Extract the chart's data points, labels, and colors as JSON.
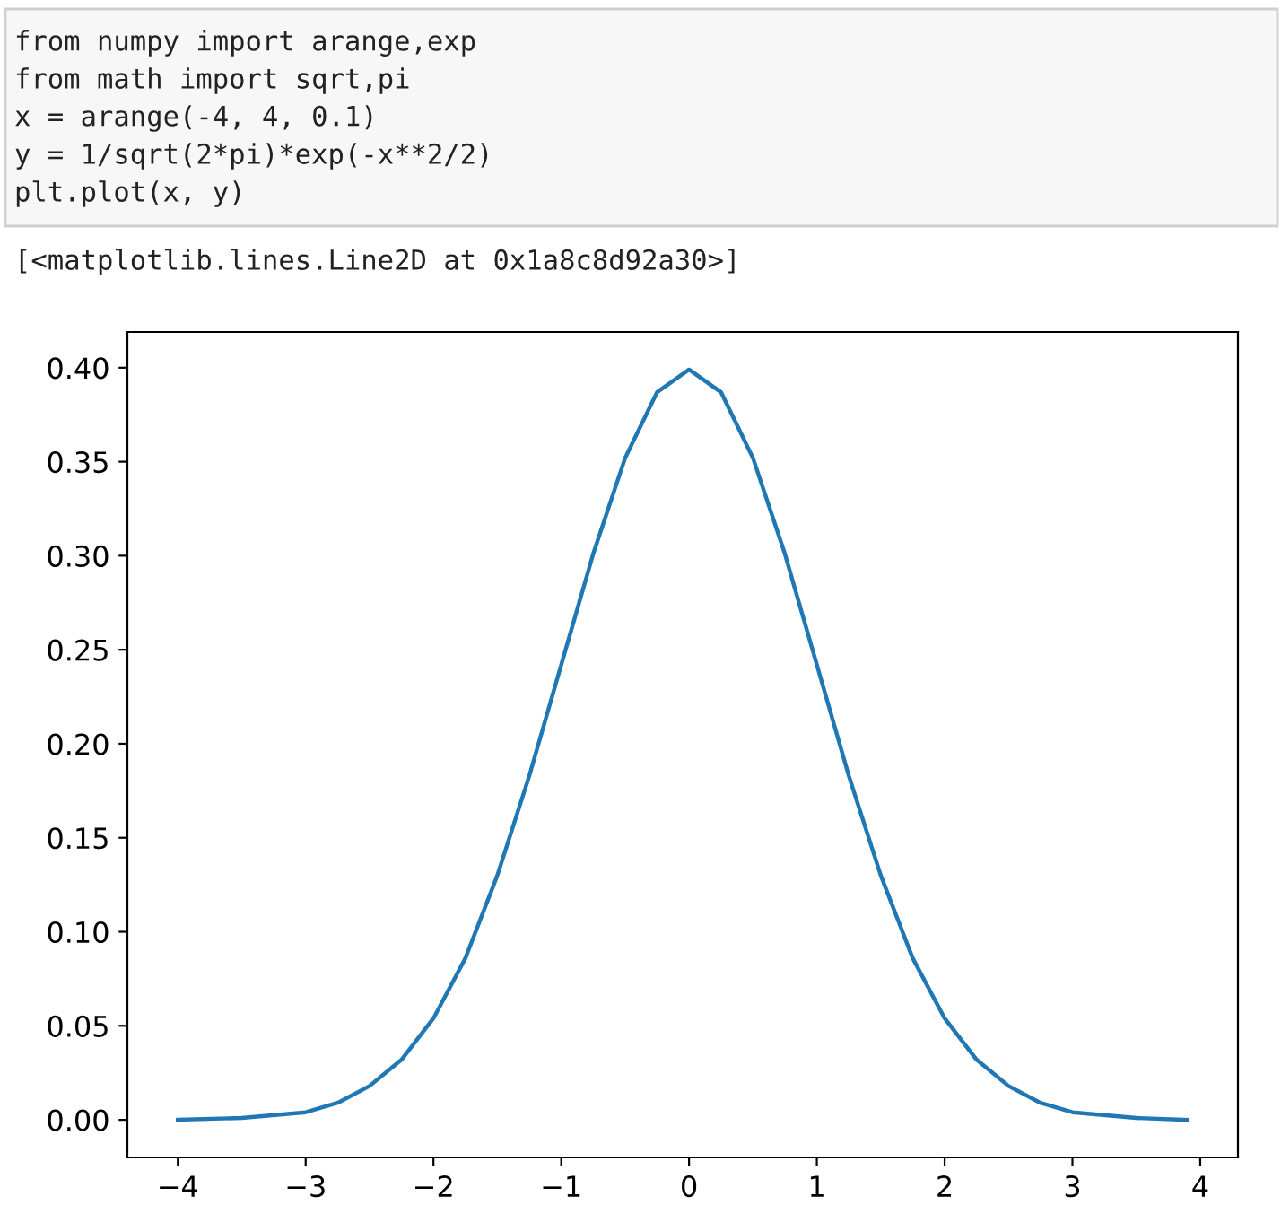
{
  "chart_data": {
    "type": "line",
    "annotations": [
      "from numpy import arange,exp",
      "from math import sqrt,pi",
      "x = arange(-4, 4, 0.1)",
      "y = 1/sqrt(2*pi)*exp(-x**2/2)",
      "plt.plot(x, y)",
      "[<matplotlib.lines.Line2D at 0x1a8c8d92a30>]"
    ],
    "series": [
      {
        "color": "#1f77b4",
        "x": [
          -4,
          -3.5,
          -3,
          -2.75,
          -2.5,
          -2.25,
          -2,
          -1.75,
          -1.5,
          -1.25,
          -1,
          -0.75,
          -0.5,
          -0.25,
          0,
          0.25,
          0.5,
          0.75,
          1,
          1.25,
          1.5,
          1.75,
          2,
          2.25,
          2.5,
          2.75,
          3,
          3.5,
          3.9
        ],
        "values": [
          0.0,
          0.001,
          0.004,
          0.009,
          0.018,
          0.032,
          0.054,
          0.086,
          0.13,
          0.183,
          0.242,
          0.301,
          0.352,
          0.387,
          0.399,
          0.387,
          0.352,
          0.301,
          0.242,
          0.183,
          0.13,
          0.086,
          0.054,
          0.032,
          0.018,
          0.009,
          0.004,
          0.001,
          0.0
        ]
      }
    ],
    "xlim": [
      -4.395,
      4.295
    ],
    "ylim": [
      -0.02,
      0.419
    ],
    "xticks": [
      {
        "value": -4,
        "label": "−4"
      },
      {
        "value": -3,
        "label": "−3"
      },
      {
        "value": -2,
        "label": "−2"
      },
      {
        "value": -1,
        "label": "−1"
      },
      0,
      1,
      2,
      3,
      4
    ],
    "yticks": [
      {
        "value": 0,
        "label": "0.00"
      },
      {
        "value": 0.05,
        "label": "0.05"
      },
      {
        "value": 0.1,
        "label": "0.10"
      },
      {
        "value": 0.15,
        "label": "0.15"
      },
      {
        "value": 0.2,
        "label": "0.20"
      },
      {
        "value": 0.25,
        "label": "0.25"
      },
      {
        "value": 0.3,
        "label": "0.30"
      },
      {
        "value": 0.35,
        "label": "0.35"
      },
      {
        "value": 0.4,
        "label": "0.40"
      }
    ],
    "grid": false,
    "legend": false,
    "marker": "none",
    "line_style": "solid"
  }
}
